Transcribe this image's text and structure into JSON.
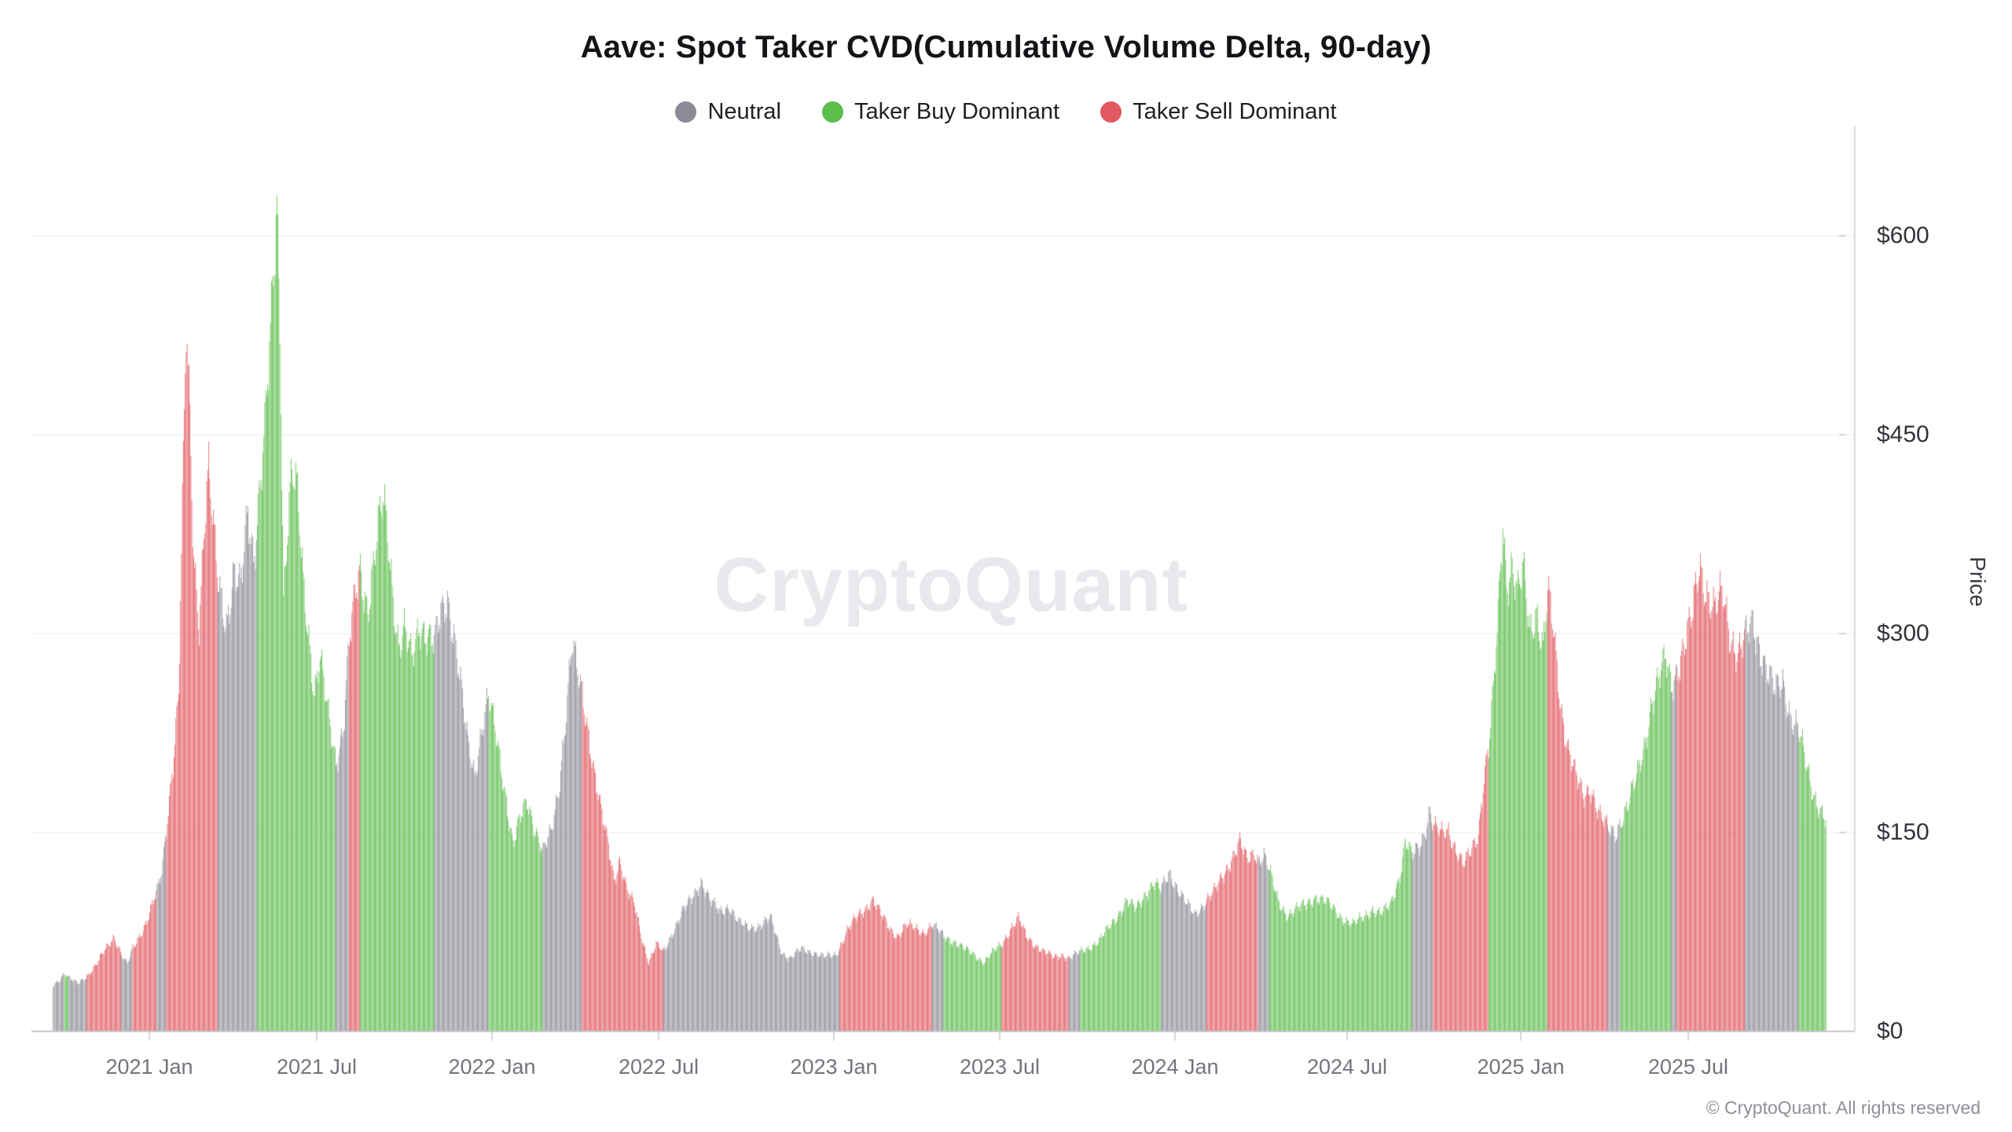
{
  "page": {
    "watermark": "CryptoQuant",
    "footer": "© CryptoQuant. All rights reserved"
  },
  "legend": [
    {
      "key": "neutral",
      "label": "Neutral",
      "color": "#8b8b96"
    },
    {
      "key": "taker-buy-dominant",
      "label": "Taker Buy Dominant",
      "color": "#5bbd4a"
    },
    {
      "key": "taker-sell-dominant",
      "label": "Taker Sell Dominant",
      "color": "#e25860"
    }
  ],
  "chart_data": {
    "type": "bar",
    "title": "Aave: Spot Taker CVD(Cumulative Volume Delta, 90-day)",
    "xlabel": "",
    "ylabel": "Price",
    "y_ticks": [
      "$600",
      "$450",
      "$300",
      "$150",
      "$0"
    ],
    "y_tick_values": [
      600,
      450,
      300,
      150,
      0
    ],
    "ylim": [
      0,
      683
    ],
    "grid": true,
    "legend_position": "top-center",
    "x_ticks": [
      "2021 Jan",
      "2021 Jul",
      "2022 Jan",
      "2022 Jul",
      "2023 Jan",
      "2023 Jul",
      "2024 Jan",
      "2024 Jul",
      "2025 Jan",
      "2025 Jul"
    ],
    "x_range": [
      "2020-09-20",
      "2025-11-26"
    ],
    "regime_colors": {
      "n": "#8b8b96",
      "b": "#5bbd4a",
      "s": "#e25860"
    },
    "series_format": [
      "date",
      "price_usd",
      "regime (n=Neutral, b=Taker Buy Dominant, s=Taker Sell Dominant)"
    ],
    "series": [
      [
        "2020-09-20",
        35,
        "n"
      ],
      [
        "2020-09-28",
        40,
        "n"
      ],
      [
        "2020-10-02",
        44,
        "b"
      ],
      [
        "2020-10-07",
        40,
        "n"
      ],
      [
        "2020-10-16",
        36,
        "n"
      ],
      [
        "2020-10-26",
        42,
        "s"
      ],
      [
        "2020-11-05",
        50,
        "s"
      ],
      [
        "2020-11-15",
        62,
        "s"
      ],
      [
        "2020-11-24",
        72,
        "s"
      ],
      [
        "2020-12-02",
        58,
        "n"
      ],
      [
        "2020-12-08",
        50,
        "n"
      ],
      [
        "2020-12-14",
        62,
        "s"
      ],
      [
        "2020-12-21",
        72,
        "s"
      ],
      [
        "2020-12-28",
        82,
        "s"
      ],
      [
        "2021-01-09",
        105,
        "n"
      ],
      [
        "2021-01-14",
        120,
        "n"
      ],
      [
        "2021-01-19",
        155,
        "s"
      ],
      [
        "2021-01-26",
        205,
        "s"
      ],
      [
        "2021-02-01",
        255,
        "s"
      ],
      [
        "2021-02-05",
        390,
        "s"
      ],
      [
        "2021-02-09",
        527,
        "s"
      ],
      [
        "2021-02-13",
        460,
        "s"
      ],
      [
        "2021-02-17",
        360,
        "s"
      ],
      [
        "2021-02-23",
        310,
        "s"
      ],
      [
        "2021-02-28",
        380,
        "s"
      ],
      [
        "2021-03-05",
        420,
        "s"
      ],
      [
        "2021-03-10",
        375,
        "s"
      ],
      [
        "2021-03-15",
        340,
        "n"
      ],
      [
        "2021-03-24",
        310,
        "n"
      ],
      [
        "2021-04-01",
        345,
        "n"
      ],
      [
        "2021-04-08",
        330,
        "n"
      ],
      [
        "2021-04-16",
        395,
        "n"
      ],
      [
        "2021-04-22",
        360,
        "n"
      ],
      [
        "2021-04-26",
        390,
        "b"
      ],
      [
        "2021-05-04",
        450,
        "b"
      ],
      [
        "2021-05-10",
        520,
        "b"
      ],
      [
        "2021-05-14",
        580,
        "b"
      ],
      [
        "2021-05-17",
        628,
        "b"
      ],
      [
        "2021-05-20",
        540,
        "b"
      ],
      [
        "2021-05-24",
        330,
        "b"
      ],
      [
        "2021-05-28",
        380,
        "b"
      ],
      [
        "2021-06-02",
        420,
        "b"
      ],
      [
        "2021-06-08",
        400,
        "b"
      ],
      [
        "2021-06-14",
        340,
        "b"
      ],
      [
        "2021-06-20",
        300,
        "b"
      ],
      [
        "2021-06-26",
        255,
        "b"
      ],
      [
        "2021-07-02",
        280,
        "b"
      ],
      [
        "2021-07-08",
        250,
        "b"
      ],
      [
        "2021-07-14",
        225,
        "b"
      ],
      [
        "2021-07-19",
        205,
        "n"
      ],
      [
        "2021-07-27",
        230,
        "n"
      ],
      [
        "2021-08-02",
        290,
        "s"
      ],
      [
        "2021-08-09",
        330,
        "s"
      ],
      [
        "2021-08-14",
        350,
        "b"
      ],
      [
        "2021-08-22",
        320,
        "b"
      ],
      [
        "2021-08-30",
        360,
        "b"
      ],
      [
        "2021-09-07",
        400,
        "b"
      ],
      [
        "2021-09-12",
        380,
        "b"
      ],
      [
        "2021-09-18",
        330,
        "b"
      ],
      [
        "2021-09-24",
        290,
        "b"
      ],
      [
        "2021-09-30",
        300,
        "b"
      ],
      [
        "2021-10-08",
        280,
        "b"
      ],
      [
        "2021-10-16",
        310,
        "b"
      ],
      [
        "2021-10-24",
        300,
        "b"
      ],
      [
        "2021-11-01",
        290,
        "n"
      ],
      [
        "2021-11-08",
        315,
        "n"
      ],
      [
        "2021-11-15",
        330,
        "n"
      ],
      [
        "2021-11-22",
        300,
        "n"
      ],
      [
        "2021-11-29",
        260,
        "n"
      ],
      [
        "2021-12-06",
        220,
        "n"
      ],
      [
        "2021-12-14",
        195,
        "n"
      ],
      [
        "2021-12-22",
        230,
        "n"
      ],
      [
        "2021-12-29",
        250,
        "b"
      ],
      [
        "2022-01-08",
        215,
        "b"
      ],
      [
        "2022-01-16",
        180,
        "b"
      ],
      [
        "2022-01-24",
        140,
        "b"
      ],
      [
        "2022-02-01",
        160,
        "b"
      ],
      [
        "2022-02-08",
        175,
        "b"
      ],
      [
        "2022-02-16",
        155,
        "b"
      ],
      [
        "2022-02-25",
        135,
        "n"
      ],
      [
        "2022-03-06",
        150,
        "n"
      ],
      [
        "2022-03-14",
        185,
        "n"
      ],
      [
        "2022-03-21",
        235,
        "n"
      ],
      [
        "2022-03-28",
        290,
        "n"
      ],
      [
        "2022-04-04",
        265,
        "n"
      ],
      [
        "2022-04-08",
        255,
        "s"
      ],
      [
        "2022-04-14",
        230,
        "s"
      ],
      [
        "2022-04-21",
        195,
        "s"
      ],
      [
        "2022-04-28",
        165,
        "s"
      ],
      [
        "2022-05-06",
        140,
        "s"
      ],
      [
        "2022-05-12",
        115,
        "s"
      ],
      [
        "2022-05-18",
        130,
        "s"
      ],
      [
        "2022-05-26",
        105,
        "s"
      ],
      [
        "2022-06-03",
        95,
        "s"
      ],
      [
        "2022-06-11",
        70,
        "s"
      ],
      [
        "2022-06-18",
        52,
        "s"
      ],
      [
        "2022-06-26",
        65,
        "s"
      ],
      [
        "2022-07-04",
        60,
        "n"
      ],
      [
        "2022-07-14",
        76,
        "n"
      ],
      [
        "2022-07-24",
        90,
        "n"
      ],
      [
        "2022-08-03",
        100,
        "n"
      ],
      [
        "2022-08-13",
        114,
        "n"
      ],
      [
        "2022-08-23",
        98,
        "n"
      ],
      [
        "2022-09-02",
        90,
        "n"
      ],
      [
        "2022-09-12",
        95,
        "n"
      ],
      [
        "2022-09-22",
        82,
        "n"
      ],
      [
        "2022-10-02",
        78,
        "n"
      ],
      [
        "2022-10-14",
        80,
        "n"
      ],
      [
        "2022-10-26",
        85,
        "n"
      ],
      [
        "2022-11-07",
        60,
        "n"
      ],
      [
        "2022-11-16",
        55,
        "n"
      ],
      [
        "2022-11-28",
        62,
        "n"
      ],
      [
        "2022-12-10",
        60,
        "n"
      ],
      [
        "2022-12-22",
        56,
        "n"
      ],
      [
        "2023-01-04",
        58,
        "n"
      ],
      [
        "2023-01-08",
        64,
        "s"
      ],
      [
        "2023-01-16",
        76,
        "s"
      ],
      [
        "2023-01-25",
        85,
        "s"
      ],
      [
        "2023-02-03",
        92,
        "s"
      ],
      [
        "2023-02-12",
        100,
        "s"
      ],
      [
        "2023-02-21",
        88,
        "s"
      ],
      [
        "2023-03-02",
        78,
        "s"
      ],
      [
        "2023-03-11",
        72,
        "s"
      ],
      [
        "2023-03-20",
        80,
        "s"
      ],
      [
        "2023-03-29",
        78,
        "s"
      ],
      [
        "2023-04-08",
        75,
        "s"
      ],
      [
        "2023-04-17",
        80,
        "n"
      ],
      [
        "2023-04-29",
        72,
        "b"
      ],
      [
        "2023-05-10",
        68,
        "b"
      ],
      [
        "2023-05-21",
        62,
        "b"
      ],
      [
        "2023-06-01",
        58,
        "b"
      ],
      [
        "2023-06-11",
        52,
        "b"
      ],
      [
        "2023-06-21",
        60,
        "b"
      ],
      [
        "2023-06-30",
        66,
        "s"
      ],
      [
        "2023-07-10",
        78,
        "s"
      ],
      [
        "2023-07-18",
        85,
        "s"
      ],
      [
        "2023-07-26",
        72,
        "s"
      ],
      [
        "2023-08-04",
        66,
        "s"
      ],
      [
        "2023-08-14",
        60,
        "s"
      ],
      [
        "2023-08-24",
        56,
        "s"
      ],
      [
        "2023-09-03",
        58,
        "s"
      ],
      [
        "2023-09-10",
        55,
        "n"
      ],
      [
        "2023-09-22",
        60,
        "b"
      ],
      [
        "2023-10-02",
        64,
        "b"
      ],
      [
        "2023-10-12",
        68,
        "b"
      ],
      [
        "2023-10-22",
        78,
        "b"
      ],
      [
        "2023-11-01",
        88,
        "b"
      ],
      [
        "2023-11-10",
        98,
        "b"
      ],
      [
        "2023-11-20",
        92,
        "b"
      ],
      [
        "2023-11-30",
        104,
        "b"
      ],
      [
        "2023-12-09",
        112,
        "b"
      ],
      [
        "2023-12-17",
        106,
        "n"
      ],
      [
        "2023-12-26",
        120,
        "n"
      ],
      [
        "2024-01-04",
        108,
        "n"
      ],
      [
        "2024-01-13",
        96,
        "n"
      ],
      [
        "2024-01-22",
        88,
        "n"
      ],
      [
        "2024-01-31",
        96,
        "n"
      ],
      [
        "2024-02-04",
        100,
        "s"
      ],
      [
        "2024-02-13",
        106,
        "s"
      ],
      [
        "2024-02-22",
        118,
        "s"
      ],
      [
        "2024-03-02",
        132,
        "s"
      ],
      [
        "2024-03-10",
        143,
        "s"
      ],
      [
        "2024-03-18",
        128,
        "s"
      ],
      [
        "2024-03-26",
        136,
        "s"
      ],
      [
        "2024-03-30",
        130,
        "n"
      ],
      [
        "2024-04-05",
        134,
        "n"
      ],
      [
        "2024-04-11",
        120,
        "b"
      ],
      [
        "2024-04-20",
        98,
        "b"
      ],
      [
        "2024-04-30",
        88,
        "b"
      ],
      [
        "2024-05-10",
        92,
        "b"
      ],
      [
        "2024-05-20",
        96,
        "b"
      ],
      [
        "2024-05-30",
        102,
        "b"
      ],
      [
        "2024-06-09",
        98,
        "b"
      ],
      [
        "2024-06-19",
        92,
        "b"
      ],
      [
        "2024-06-29",
        85,
        "b"
      ],
      [
        "2024-07-09",
        80,
        "b"
      ],
      [
        "2024-07-19",
        86,
        "b"
      ],
      [
        "2024-07-29",
        92,
        "b"
      ],
      [
        "2024-08-08",
        88,
        "b"
      ],
      [
        "2024-08-18",
        96,
        "b"
      ],
      [
        "2024-08-28",
        118,
        "b"
      ],
      [
        "2024-09-03",
        143,
        "b"
      ],
      [
        "2024-09-10",
        132,
        "n"
      ],
      [
        "2024-09-18",
        140,
        "n"
      ],
      [
        "2024-09-24",
        152,
        "n"
      ],
      [
        "2024-09-29",
        168,
        "n"
      ],
      [
        "2024-10-03",
        155,
        "s"
      ],
      [
        "2024-10-11",
        148,
        "s"
      ],
      [
        "2024-10-19",
        152,
        "s"
      ],
      [
        "2024-10-27",
        138,
        "s"
      ],
      [
        "2024-11-04",
        125,
        "s"
      ],
      [
        "2024-11-12",
        135,
        "s"
      ],
      [
        "2024-11-20",
        150,
        "s"
      ],
      [
        "2024-11-26",
        195,
        "s"
      ],
      [
        "2024-12-01",
        215,
        "b"
      ],
      [
        "2024-12-06",
        255,
        "b"
      ],
      [
        "2024-12-11",
        310,
        "b"
      ],
      [
        "2024-12-16",
        384,
        "b"
      ],
      [
        "2024-12-20",
        340,
        "b"
      ],
      [
        "2024-12-26",
        355,
        "b"
      ],
      [
        "2025-01-01",
        330,
        "b"
      ],
      [
        "2025-01-07",
        345,
        "b"
      ],
      [
        "2025-01-14",
        300,
        "b"
      ],
      [
        "2025-01-21",
        320,
        "b"
      ],
      [
        "2025-01-28",
        290,
        "b"
      ],
      [
        "2025-02-02",
        330,
        "s"
      ],
      [
        "2025-02-08",
        300,
        "s"
      ],
      [
        "2025-02-16",
        245,
        "s"
      ],
      [
        "2025-02-24",
        215,
        "s"
      ],
      [
        "2025-03-04",
        192,
        "s"
      ],
      [
        "2025-03-12",
        175,
        "s"
      ],
      [
        "2025-03-20",
        185,
        "s"
      ],
      [
        "2025-03-29",
        165,
        "s"
      ],
      [
        "2025-04-07",
        152,
        "n"
      ],
      [
        "2025-04-15",
        148,
        "n"
      ],
      [
        "2025-04-21",
        160,
        "b"
      ],
      [
        "2025-04-29",
        172,
        "b"
      ],
      [
        "2025-05-08",
        190,
        "b"
      ],
      [
        "2025-05-16",
        215,
        "b"
      ],
      [
        "2025-05-24",
        250,
        "b"
      ],
      [
        "2025-06-01",
        265,
        "b"
      ],
      [
        "2025-06-08",
        280,
        "b"
      ],
      [
        "2025-06-14",
        262,
        "n"
      ],
      [
        "2025-06-20",
        275,
        "s"
      ],
      [
        "2025-06-28",
        290,
        "s"
      ],
      [
        "2025-07-06",
        310,
        "s"
      ],
      [
        "2025-07-14",
        355,
        "s"
      ],
      [
        "2025-07-22",
        332,
        "s"
      ],
      [
        "2025-07-30",
        315,
        "s"
      ],
      [
        "2025-08-08",
        330,
        "s"
      ],
      [
        "2025-08-16",
        300,
        "s"
      ],
      [
        "2025-08-24",
        285,
        "s"
      ],
      [
        "2025-09-01",
        295,
        "n"
      ],
      [
        "2025-09-09",
        308,
        "n"
      ],
      [
        "2025-09-17",
        290,
        "n"
      ],
      [
        "2025-09-25",
        270,
        "n"
      ],
      [
        "2025-10-03",
        255,
        "n"
      ],
      [
        "2025-10-11",
        265,
        "n"
      ],
      [
        "2025-10-19",
        240,
        "n"
      ],
      [
        "2025-10-28",
        225,
        "b"
      ],
      [
        "2025-11-05",
        200,
        "b"
      ],
      [
        "2025-11-13",
        180,
        "b"
      ],
      [
        "2025-11-20",
        168,
        "b"
      ],
      [
        "2025-11-26",
        158,
        "b"
      ]
    ]
  }
}
